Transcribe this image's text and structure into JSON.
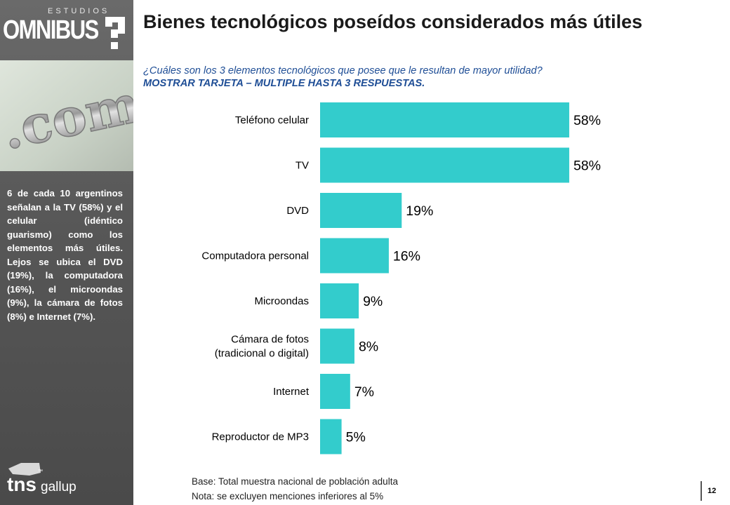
{
  "logo": {
    "small_text": "ESTUDIOS",
    "name": "OMNIBUS",
    "photo_text": ".com"
  },
  "brand": {
    "name_prefix": "tns",
    "name_suffix": "gallup",
    "trademark": "™"
  },
  "header": {
    "title": "Bienes tecnológicos poseídos considerados más útiles",
    "question": "¿Cuáles son los 3 elementos tecnológicos que posee que le resultan de mayor utilidad?",
    "instruction": "MOSTRAR TARJETA – MULTIPLE HASTA 3 RESPUESTAS."
  },
  "sidebar": {
    "summary": "6 de cada 10 argentinos señalan a la TV (58%) y el celular (idéntico guarismo) como los elementos más útiles. Lejos se ubica el DVD (19%), la computadora (16%), el microondas (9%), la cámara de fotos (8%) e Internet (7%)."
  },
  "chart_data": {
    "type": "bar",
    "orientation": "horizontal",
    "categories": [
      [
        "Teléfono celular"
      ],
      [
        "TV"
      ],
      [
        "DVD"
      ],
      [
        "Computadora personal"
      ],
      [
        "Microondas"
      ],
      [
        "Cámara de fotos",
        "(tradicional o digital)"
      ],
      [
        "Internet"
      ],
      [
        "Reproductor de MP3"
      ]
    ],
    "values": [
      58,
      58,
      19,
      16,
      9,
      8,
      7,
      5
    ],
    "labels": [
      "58%",
      "58%",
      "19%",
      "16%",
      "9%",
      "8%",
      "7%",
      "5%"
    ],
    "unit": "%",
    "bar_color": "#33cccc",
    "xlim": [
      0,
      100
    ],
    "grid": false,
    "legend": "none"
  },
  "footer": {
    "base": "Base: Total muestra nacional de población adulta",
    "note": "Nota: se excluyen menciones inferiores al 5%",
    "page_number": "12"
  }
}
